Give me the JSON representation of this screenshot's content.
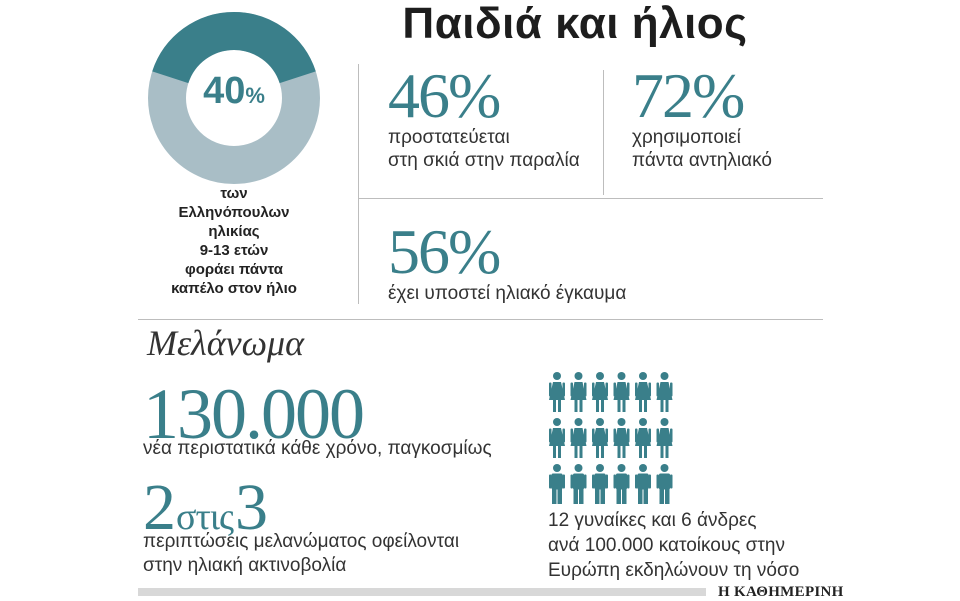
{
  "title": "Παιδιά και ήλιος",
  "donut": {
    "value": "40",
    "pct_sign": "%",
    "fraction": 0.4,
    "color_fill": "#3a7f8a",
    "color_rest": "#a9bec6",
    "description": [
      "των",
      "Ελληνόπουλων",
      "ηλικίας",
      "9-13 ετών",
      "φοράει πάντα",
      "καπέλο στον ήλιο"
    ]
  },
  "stats": [
    {
      "value": "46%",
      "lines": [
        "προστατεύεται",
        "στη σκιά στην παραλία"
      ]
    },
    {
      "value": "72%",
      "lines": [
        "χρησιμοποιεί",
        "πάντα αντηλιακό"
      ]
    },
    {
      "value": "56%",
      "lines": [
        "έχει υποστεί ηλιακό έγκαυμα"
      ]
    }
  ],
  "melanoma": {
    "heading": "Μελάνωμα",
    "big_number": "130.000",
    "new_cases": "νέα περιστατικά κάθε χρόνο, παγκοσμίως",
    "ratio_a": "2",
    "ratio_of": "στις",
    "ratio_b": "3",
    "attribution": [
      "περιπτώσεις μελανώματος οφείλονται",
      "στην ηλιακή ακτινοβολία"
    ],
    "people": {
      "women": 12,
      "men": 6,
      "icon": "person-icon"
    },
    "people_text": [
      "12 γυναίκες και 6 άνδρες",
      "ανά 100.000 κατοίκους στην",
      "Ευρώπη εκδηλώνουν τη νόσο"
    ]
  },
  "logo": "Η ΚΑΘΗΜΕΡΙΝΗ",
  "colors": {
    "accent": "#3a7f8a",
    "rule": "#bdbdbd"
  }
}
